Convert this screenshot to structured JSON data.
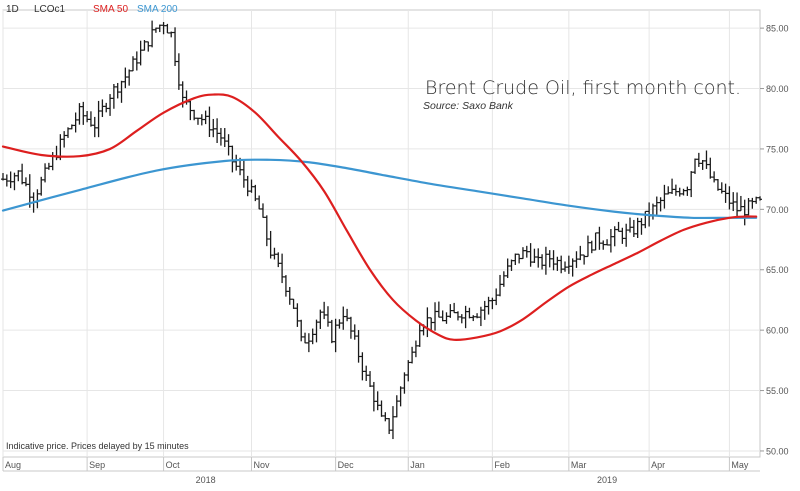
{
  "header": {
    "interval": "1D",
    "symbol": "LCOc1",
    "sma50_label": "SMA 50",
    "sma200_label": "SMA 200"
  },
  "note": "Indicative price. Prices delayed by 15 minutes",
  "chart_data": {
    "type": "ohlc",
    "title": "Brent Crude Oil, first month cont.",
    "subtitle": "Source: Saxo Bank",
    "y_axis_side": "right",
    "ylim": [
      49.5,
      86.5
    ],
    "y_ticks": [
      "85.00",
      "80.00",
      "75.00",
      "70.00",
      "65.00",
      "60.00",
      "55.00",
      "50.00"
    ],
    "x_months": [
      {
        "label": "Aug",
        "t": 0
      },
      {
        "label": "Sep",
        "t": 22
      },
      {
        "label": "Oct",
        "t": 42
      },
      {
        "label": "Nov",
        "t": 65
      },
      {
        "label": "Dec",
        "t": 87
      },
      {
        "label": "Jan",
        "t": 106
      },
      {
        "label": "Feb",
        "t": 128
      },
      {
        "label": "Mar",
        "t": 148
      },
      {
        "label": "Apr",
        "t": 169
      },
      {
        "label": "May",
        "t": 190
      }
    ],
    "x_years": [
      {
        "label": "2018",
        "t": 53
      },
      {
        "label": "2019",
        "t": 158
      }
    ],
    "t_range": [
      0,
      198
    ],
    "price_anchors": [
      [
        0,
        72.5
      ],
      [
        4,
        73.0
      ],
      [
        8,
        71.0
      ],
      [
        12,
        73.5
      ],
      [
        16,
        76.0
      ],
      [
        20,
        78.0
      ],
      [
        24,
        77.0
      ],
      [
        28,
        79.5
      ],
      [
        32,
        81.0
      ],
      [
        36,
        83.0
      ],
      [
        40,
        85.0
      ],
      [
        42,
        85.5
      ],
      [
        44,
        84.5
      ],
      [
        47,
        79.0
      ],
      [
        50,
        78.0
      ],
      [
        54,
        77.0
      ],
      [
        57,
        76.0
      ],
      [
        60,
        74.0
      ],
      [
        64,
        72.0
      ],
      [
        67,
        70.0
      ],
      [
        70,
        66.5
      ],
      [
        73,
        64.5
      ],
      [
        76,
        62.0
      ],
      [
        78,
        59.0
      ],
      [
        80,
        59.5
      ],
      [
        83,
        61.5
      ],
      [
        86,
        59.5
      ],
      [
        89,
        61.5
      ],
      [
        92,
        59.0
      ],
      [
        95,
        56.0
      ],
      [
        97,
        54.5
      ],
      [
        99,
        52.5
      ],
      [
        101,
        52.0
      ],
      [
        103,
        54.0
      ],
      [
        105,
        56.5
      ],
      [
        107,
        58.0
      ],
      [
        109,
        60.5
      ],
      [
        112,
        61.0
      ],
      [
        116,
        61.0
      ],
      [
        120,
        61.5
      ],
      [
        124,
        61.5
      ],
      [
        128,
        62.5
      ],
      [
        131,
        64.5
      ],
      [
        134,
        66.0
      ],
      [
        137,
        66.5
      ],
      [
        140,
        65.5
      ],
      [
        143,
        66.0
      ],
      [
        146,
        65.5
      ],
      [
        149,
        66.0
      ],
      [
        152,
        66.5
      ],
      [
        155,
        67.5
      ],
      [
        158,
        67.5
      ],
      [
        161,
        68.0
      ],
      [
        164,
        68.0
      ],
      [
        167,
        69.0
      ],
      [
        170,
        70.0
      ],
      [
        173,
        71.0
      ],
      [
        176,
        71.5
      ],
      [
        179,
        72.0
      ],
      [
        181,
        74.5
      ],
      [
        183,
        74.0
      ],
      [
        186,
        72.0
      ],
      [
        189,
        71.0
      ],
      [
        192,
        70.0
      ],
      [
        194,
        70.0
      ],
      [
        197,
        70.5
      ]
    ],
    "series": [
      {
        "name": "SMA 50",
        "color": "#dd1f1f",
        "points": [
          [
            0,
            75.2
          ],
          [
            10,
            74.5
          ],
          [
            20,
            74.4
          ],
          [
            28,
            75.0
          ],
          [
            35,
            76.5
          ],
          [
            42,
            78.0
          ],
          [
            50,
            79.2
          ],
          [
            55,
            79.5
          ],
          [
            60,
            79.3
          ],
          [
            66,
            78.0
          ],
          [
            72,
            76.0
          ],
          [
            78,
            74.0
          ],
          [
            84,
            71.5
          ],
          [
            90,
            68.2
          ],
          [
            96,
            65.0
          ],
          [
            102,
            62.5
          ],
          [
            108,
            60.8
          ],
          [
            114,
            59.6
          ],
          [
            118,
            59.2
          ],
          [
            124,
            59.4
          ],
          [
            130,
            59.9
          ],
          [
            136,
            60.9
          ],
          [
            142,
            62.3
          ],
          [
            148,
            63.6
          ],
          [
            154,
            64.6
          ],
          [
            160,
            65.5
          ],
          [
            166,
            66.4
          ],
          [
            172,
            67.4
          ],
          [
            178,
            68.3
          ],
          [
            184,
            68.9
          ],
          [
            190,
            69.3
          ],
          [
            194,
            69.4
          ],
          [
            197,
            69.4
          ]
        ]
      },
      {
        "name": "SMA 200",
        "color": "#3c96d1",
        "points": [
          [
            0,
            69.9
          ],
          [
            20,
            71.6
          ],
          [
            40,
            73.2
          ],
          [
            58,
            74.0
          ],
          [
            70,
            74.1
          ],
          [
            80,
            73.9
          ],
          [
            90,
            73.4
          ],
          [
            100,
            72.8
          ],
          [
            112,
            72.1
          ],
          [
            124,
            71.5
          ],
          [
            136,
            70.9
          ],
          [
            148,
            70.3
          ],
          [
            160,
            69.8
          ],
          [
            170,
            69.5
          ],
          [
            180,
            69.3
          ],
          [
            190,
            69.3
          ],
          [
            197,
            69.3
          ]
        ]
      }
    ]
  }
}
